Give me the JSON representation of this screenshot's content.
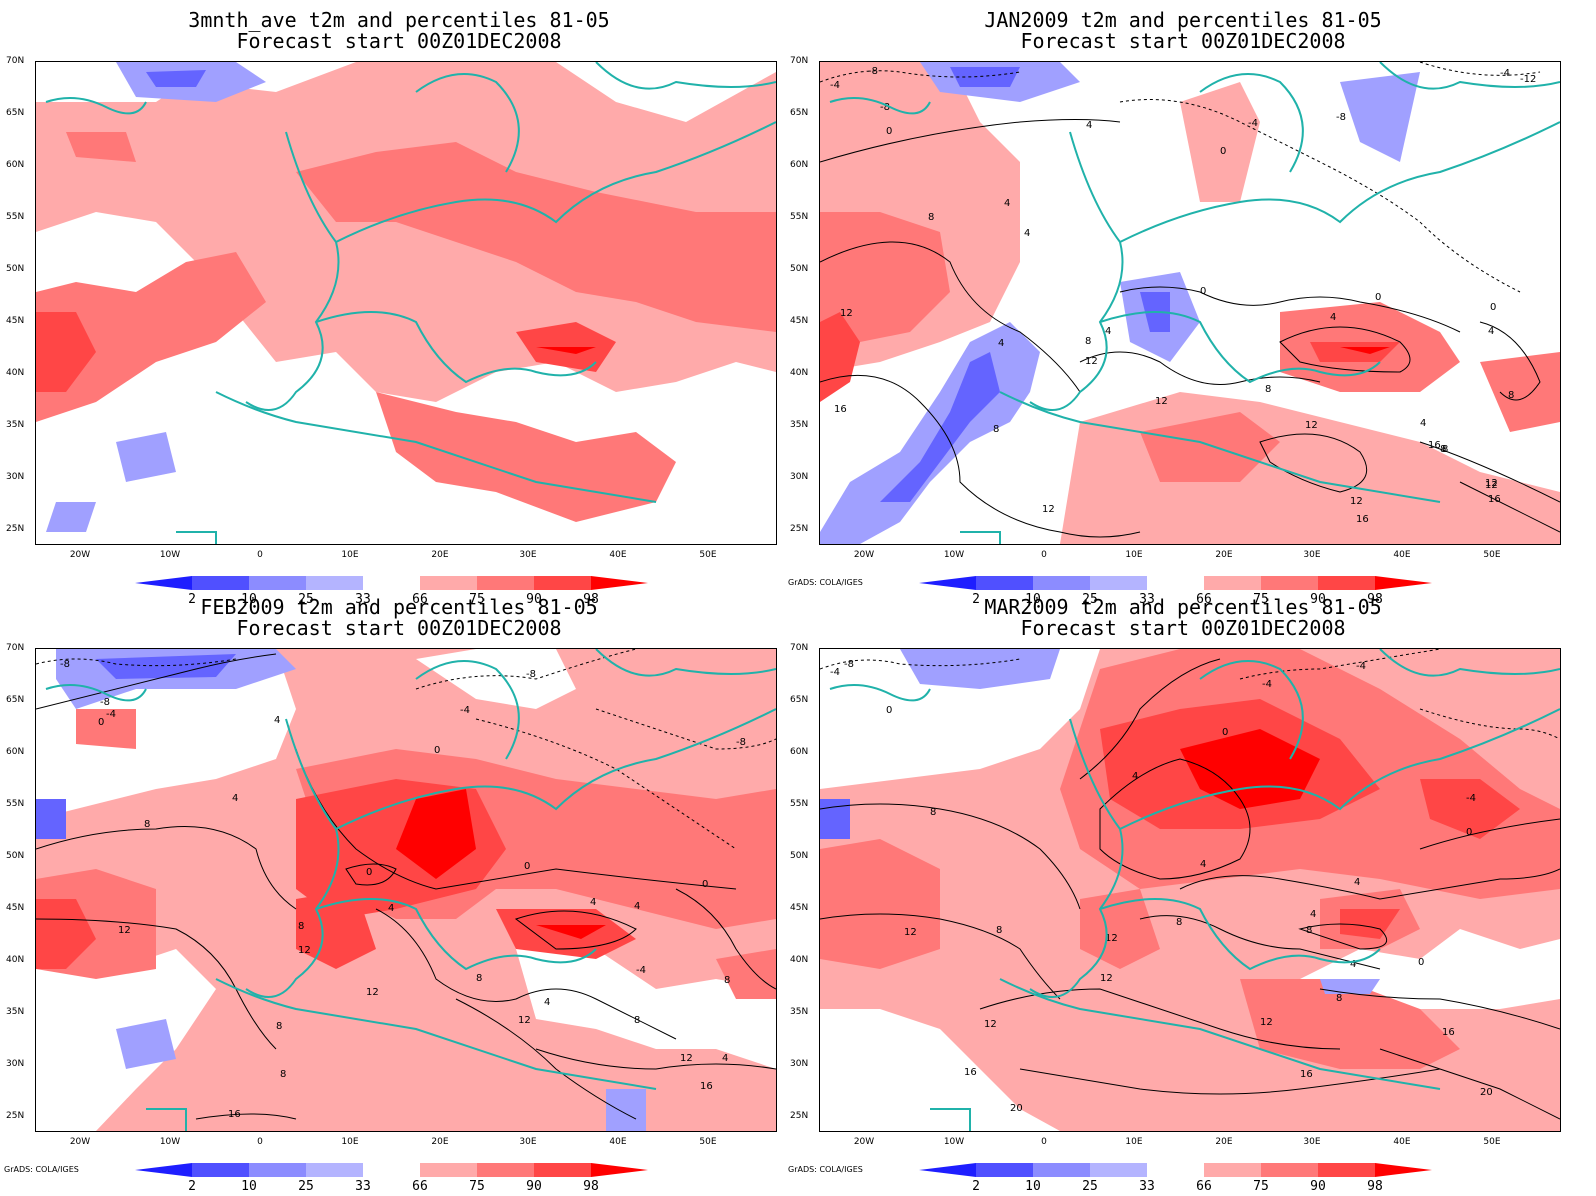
{
  "panels": [
    {
      "title_line1": "3mnth_ave t2m and percentiles 81-05",
      "title_line2": "Forecast start 00Z01DEC2008",
      "credit": "",
      "contour_labels": []
    },
    {
      "title_line1": "JAN2009 t2m and percentiles 81-05",
      "title_line2": "Forecast start 00Z01DEC2008",
      "credit": "GrADS: COLA/IGES",
      "contour_labels": [
        "-8",
        "-4",
        "-8",
        "0",
        "4",
        "-4",
        "-8",
        "-12",
        "-4",
        "0",
        "4",
        "4",
        "8",
        "12",
        "0",
        "0",
        "4",
        "8",
        "12",
        "4",
        "8",
        "12",
        "16",
        "8",
        "12",
        "4",
        "8",
        "12",
        "0",
        "4",
        "8",
        "12",
        "16",
        "12",
        "16",
        "12",
        "16",
        "8",
        "4"
      ]
    },
    {
      "title_line1": "FEB2009 t2m and percentiles 81-05",
      "title_line2": "Forecast start 00Z01DEC2008",
      "credit": "GrADS: COLA/IGES",
      "contour_labels": [
        "-8",
        "-8",
        "-4",
        "0",
        "4",
        "-8",
        "-4",
        "-8",
        "0",
        "4",
        "8",
        "12",
        "0",
        "4",
        "8",
        "12",
        "0",
        "4",
        "0",
        "4",
        "8",
        "12",
        "8",
        "12",
        "16",
        "4",
        "8",
        "4",
        "16",
        "12",
        "8",
        "-4",
        "8"
      ]
    },
    {
      "title_line1": "MAR2009 t2m and percentiles 81-05",
      "title_line2": "Forecast start 00Z01DEC2008",
      "credit": "GrADS: COLA/IGES",
      "contour_labels": [
        "-8",
        "-4",
        "0",
        "-4",
        "-4",
        "0",
        "4",
        "8",
        "0",
        "4",
        "8",
        "12",
        "4",
        "8",
        "12",
        "4",
        "8",
        "12",
        "16",
        "20",
        "20",
        "12",
        "16",
        "4",
        "-4",
        "0",
        "8",
        "12",
        "16"
      ]
    }
  ],
  "lat_labels": [
    "70N",
    "65N",
    "60N",
    "55N",
    "50N",
    "45N",
    "40N",
    "35N",
    "30N",
    "25N"
  ],
  "lon_labels": [
    "20W",
    "10W",
    "0",
    "10E",
    "20E",
    "30E",
    "40E",
    "50E"
  ],
  "colorbar": {
    "labels": [
      "2",
      "10",
      "25",
      "33",
      "66",
      "75",
      "90",
      "98"
    ],
    "colors": [
      "#1e1eff",
      "#5050ff",
      "#8c8cff",
      "#b4b4ff",
      "#ffffff",
      "#ffaaaa",
      "#ff7878",
      "#ff4646",
      "#ff0000"
    ]
  },
  "colors": {
    "coast": "#20b2aa",
    "contour": "#000000",
    "warm_light": "#ffaaaa",
    "warm_mid": "#ff7878",
    "warm_strong": "#ff4646",
    "warm_extreme": "#ff0000",
    "cold_light": "#a0a0ff",
    "cold_mid": "#6464ff",
    "cold_strong": "#3030ff"
  }
}
